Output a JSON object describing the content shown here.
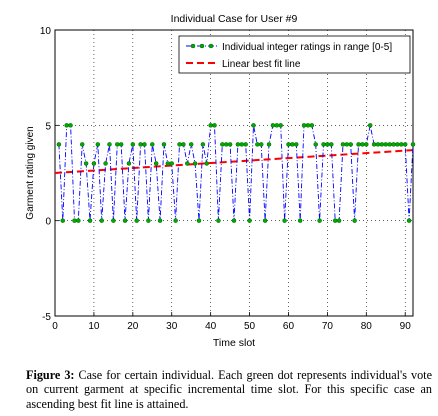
{
  "chart_data": {
    "type": "line",
    "title": "Individual Case for User #9",
    "xlabel": "Time slot",
    "ylabel": "Garment rating given",
    "xlim": [
      0,
      92
    ],
    "ylim": [
      -5,
      10
    ],
    "xticks": [
      "0",
      "10",
      "20",
      "30",
      "40",
      "50",
      "60",
      "70",
      "80",
      "90"
    ],
    "yticks": [
      "10",
      "5",
      "0",
      "-5"
    ],
    "grid": true,
    "legend_position": "top-right",
    "series": [
      {
        "name": "Individual integer ratings in range [0-5]",
        "style": "dash-dot with circle markers",
        "x": [
          1,
          2,
          3,
          4,
          5,
          6,
          7,
          8,
          9,
          10,
          11,
          12,
          13,
          14,
          15,
          16,
          17,
          18,
          19,
          20,
          21,
          22,
          23,
          24,
          25,
          26,
          27,
          28,
          29,
          30,
          31,
          32,
          33,
          34,
          35,
          36,
          37,
          38,
          39,
          40,
          41,
          42,
          43,
          44,
          45,
          46,
          47,
          48,
          49,
          50,
          51,
          52,
          53,
          54,
          55,
          56,
          57,
          58,
          59,
          60,
          61,
          62,
          63,
          64,
          65,
          66,
          67,
          68,
          69,
          70,
          71,
          72,
          73,
          74,
          75,
          76,
          77,
          78,
          79,
          80,
          81,
          82,
          83,
          84,
          85,
          86,
          87,
          88,
          89,
          90,
          91,
          92
        ],
        "y": [
          4,
          0,
          5,
          5,
          0,
          0,
          4,
          3,
          0,
          3,
          4,
          0,
          3,
          4,
          0,
          4,
          4,
          0,
          3,
          4,
          0,
          4,
          4,
          0,
          4,
          3,
          0,
          4,
          3,
          3,
          0,
          4,
          4,
          3,
          4,
          3,
          0,
          4,
          3,
          5,
          5,
          0,
          4,
          4,
          4,
          0,
          4,
          4,
          4,
          0,
          5,
          4,
          4,
          0,
          4,
          5,
          5,
          5,
          0,
          4,
          4,
          4,
          0,
          5,
          5,
          5,
          4,
          0,
          4,
          4,
          4,
          0,
          0,
          4,
          4,
          4,
          0,
          4,
          4,
          4,
          5,
          4,
          4,
          4,
          4,
          4,
          4,
          4,
          4,
          4,
          0,
          4
        ]
      },
      {
        "name": "Linear best fit line",
        "style": "red dashed",
        "x": [
          0,
          92
        ],
        "y": [
          2.5,
          3.7
        ]
      }
    ]
  },
  "colors": {
    "ratings_line": "#0000ff",
    "ratings_marker": "#00aa00",
    "fit_line": "#ff0000"
  },
  "caption": {
    "label": "Figure 3:",
    "text": " Case for certain individual. Each green dot represents individual's vote on current garment at specific incremental time slot. For this specific case an ascending best fit line is attained."
  }
}
